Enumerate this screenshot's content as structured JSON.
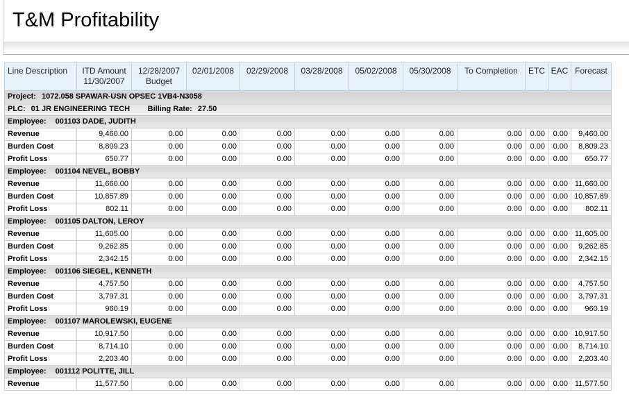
{
  "title": "T&M Profitability",
  "table": {
    "columns": [
      {
        "key": "line-description",
        "label": "Line Description",
        "align": "left"
      },
      {
        "key": "itd-amount",
        "label": "ITD Amount\n11/30/2007"
      },
      {
        "key": "budget-12-28-2007",
        "label": "12/28/2007\nBudget"
      },
      {
        "key": "period-02-01-2008",
        "label": "02/01/2008"
      },
      {
        "key": "period-02-29-2008",
        "label": "02/29/2008"
      },
      {
        "key": "period-03-28-2008",
        "label": "03/28/2008"
      },
      {
        "key": "period-05-02-2008",
        "label": "05/02/2008"
      },
      {
        "key": "period-05-30-2008",
        "label": "05/30/2008"
      },
      {
        "key": "to-completion",
        "label": "To Completion"
      },
      {
        "key": "etc",
        "label": "ETC"
      },
      {
        "key": "eac",
        "label": "EAC"
      },
      {
        "key": "forecast",
        "label": "Forecast"
      }
    ],
    "project": {
      "label": "Project:",
      "value": "1072.058 SPAWAR-USN OPSEC 1VB4-N3058"
    },
    "plc": {
      "label": "PLC:",
      "value": "01 JR ENGINEERING TECH",
      "rate_label": "Billing Rate:",
      "rate_value": "27.50"
    },
    "employees": [
      {
        "label": "Employee:",
        "value": "001103 DADE, JUDITH",
        "rows": [
          {
            "label": "Revenue",
            "values": [
              "9,460.00",
              "0.00",
              "0.00",
              "0.00",
              "0.00",
              "0.00",
              "0.00",
              "0.00",
              "0.00",
              "0.00",
              "9,460.00"
            ]
          },
          {
            "label": "Burden Cost",
            "values": [
              "8,809.23",
              "0.00",
              "0.00",
              "0.00",
              "0.00",
              "0.00",
              "0.00",
              "0.00",
              "0.00",
              "0.00",
              "8,809.23"
            ]
          },
          {
            "label": "Profit Loss",
            "values": [
              "650.77",
              "0.00",
              "0.00",
              "0.00",
              "0.00",
              "0.00",
              "0.00",
              "0.00",
              "0.00",
              "0.00",
              "650.77"
            ]
          }
        ]
      },
      {
        "label": "Employee:",
        "value": "001104 NEVEL, BOBBY",
        "rows": [
          {
            "label": "Revenue",
            "values": [
              "11,660.00",
              "0.00",
              "0.00",
              "0.00",
              "0.00",
              "0.00",
              "0.00",
              "0.00",
              "0.00",
              "0.00",
              "11,660.00"
            ]
          },
          {
            "label": "Burden Cost",
            "values": [
              "10,857.89",
              "0.00",
              "0.00",
              "0.00",
              "0.00",
              "0.00",
              "0.00",
              "0.00",
              "0.00",
              "0.00",
              "10,857.89"
            ]
          },
          {
            "label": "Profit Loss",
            "values": [
              "802.11",
              "0.00",
              "0.00",
              "0.00",
              "0.00",
              "0.00",
              "0.00",
              "0.00",
              "0.00",
              "0.00",
              "802.11"
            ]
          }
        ]
      },
      {
        "label": "Employee:",
        "value": "001105 DALTON, LEROY",
        "rows": [
          {
            "label": "Revenue",
            "values": [
              "11,605.00",
              "0.00",
              "0.00",
              "0.00",
              "0.00",
              "0.00",
              "0.00",
              "0.00",
              "0.00",
              "0.00",
              "11,605.00"
            ]
          },
          {
            "label": "Burden Cost",
            "values": [
              "9,262.85",
              "0.00",
              "0.00",
              "0.00",
              "0.00",
              "0.00",
              "0.00",
              "0.00",
              "0.00",
              "0.00",
              "9,262.85"
            ]
          },
          {
            "label": "Profit Loss",
            "values": [
              "2,342.15",
              "0.00",
              "0.00",
              "0.00",
              "0.00",
              "0.00",
              "0.00",
              "0.00",
              "0.00",
              "0.00",
              "2,342.15"
            ]
          }
        ]
      },
      {
        "label": "Employee:",
        "value": "001106 SIEGEL, KENNETH",
        "rows": [
          {
            "label": "Revenue",
            "values": [
              "4,757.50",
              "0.00",
              "0.00",
              "0.00",
              "0.00",
              "0.00",
              "0.00",
              "0.00",
              "0.00",
              "0.00",
              "4,757.50"
            ]
          },
          {
            "label": "Burden Cost",
            "values": [
              "3,797.31",
              "0.00",
              "0.00",
              "0.00",
              "0.00",
              "0.00",
              "0.00",
              "0.00",
              "0.00",
              "0.00",
              "3,797.31"
            ]
          },
          {
            "label": "Profit Loss",
            "values": [
              "960.19",
              "0.00",
              "0.00",
              "0.00",
              "0.00",
              "0.00",
              "0.00",
              "0.00",
              "0.00",
              "0.00",
              "960.19"
            ]
          }
        ]
      },
      {
        "label": "Employee:",
        "value": "001107 MAROLEWSKI, EUGENE",
        "rows": [
          {
            "label": "Revenue",
            "values": [
              "10,917.50",
              "0.00",
              "0.00",
              "0.00",
              "0.00",
              "0.00",
              "0.00",
              "0.00",
              "0.00",
              "0.00",
              "10,917.50"
            ]
          },
          {
            "label": "Burden Cost",
            "values": [
              "8,714.10",
              "0.00",
              "0.00",
              "0.00",
              "0.00",
              "0.00",
              "0.00",
              "0.00",
              "0.00",
              "0.00",
              "8,714.10"
            ]
          },
          {
            "label": "Profit Loss",
            "values": [
              "2,203.40",
              "0.00",
              "0.00",
              "0.00",
              "0.00",
              "0.00",
              "0.00",
              "0.00",
              "0.00",
              "0.00",
              "2,203.40"
            ]
          }
        ]
      },
      {
        "label": "Employee:",
        "value": "001112 POLITTE, JILL",
        "rows": [
          {
            "label": "Revenue",
            "values": [
              "11,577.50",
              "0.00",
              "0.00",
              "0.00",
              "0.00",
              "0.00",
              "0.00",
              "0.00",
              "0.00",
              "0.00",
              "11,577.50"
            ]
          }
        ]
      }
    ]
  }
}
